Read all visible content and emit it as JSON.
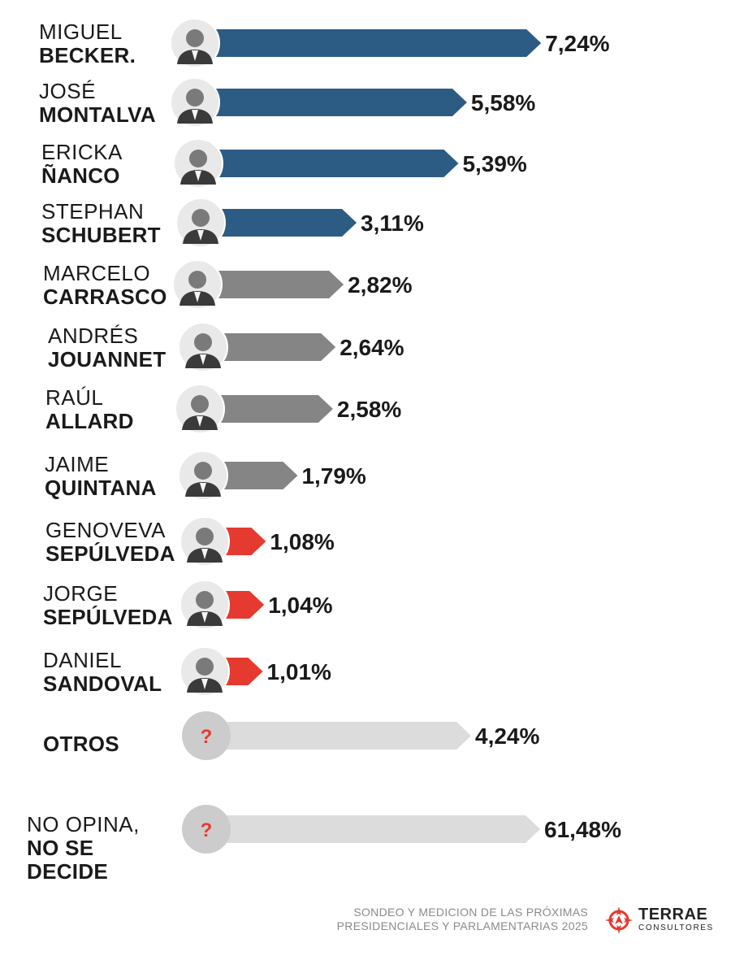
{
  "chart_data": {
    "type": "bar",
    "orientation": "horizontal",
    "value_suffix": "%",
    "categories": [
      {
        "first": "MIGUEL",
        "last": [
          "BECKER."
        ],
        "value_label": "7,24%",
        "value": 7.24,
        "group": "blue",
        "avatar": "person-photo"
      },
      {
        "first": "JOSÉ",
        "last": [
          "MONTALVA"
        ],
        "value_label": "5,58%",
        "value": 5.58,
        "group": "blue",
        "avatar": "person-photo"
      },
      {
        "first": "ERICKA",
        "last": [
          "ÑANCO"
        ],
        "value_label": "5,39%",
        "value": 5.39,
        "group": "blue",
        "avatar": "person-photo"
      },
      {
        "first": "STEPHAN",
        "last": [
          "SCHUBERT"
        ],
        "value_label": "3,11%",
        "value": 3.11,
        "group": "blue",
        "avatar": "person-photo"
      },
      {
        "first": "MARCELO",
        "last": [
          "CARRASCO"
        ],
        "value_label": "2,82%",
        "value": 2.82,
        "group": "gray",
        "avatar": "person-photo"
      },
      {
        "first": "ANDRÉS",
        "last": [
          "JOUANNET"
        ],
        "value_label": "2,64%",
        "value": 2.64,
        "group": "gray",
        "avatar": "person-photo"
      },
      {
        "first": "RAÚL",
        "last": [
          "ALLARD"
        ],
        "value_label": "2,58%",
        "value": 2.58,
        "group": "gray",
        "avatar": "person-photo"
      },
      {
        "first": "JAIME",
        "last": [
          "QUINTANA"
        ],
        "value_label": "1,79%",
        "value": 1.79,
        "group": "gray",
        "avatar": "person-photo"
      },
      {
        "first": "GENOVEVA",
        "last": [
          "SEPÚLVEDA"
        ],
        "value_label": "1,08%",
        "value": 1.08,
        "group": "red",
        "avatar": "person-photo"
      },
      {
        "first": "JORGE",
        "last": [
          "SEPÚLVEDA"
        ],
        "value_label": "1,04%",
        "value": 1.04,
        "group": "red",
        "avatar": "person-photo"
      },
      {
        "first": "DANIEL",
        "last": [
          "SANDOVAL"
        ],
        "value_label": "1,01%",
        "value": 1.01,
        "group": "red",
        "avatar": "person-photo"
      },
      {
        "first": "",
        "last": [
          "OTROS"
        ],
        "value_label": "4,24%",
        "value": 4.24,
        "group": "light",
        "avatar": "question-mark"
      },
      {
        "first": "NO OPINA,",
        "last": [
          "NO SE",
          "DECIDE"
        ],
        "value_label": "61,48%",
        "value": 61.48,
        "group": "light",
        "avatar": "question-mark"
      }
    ],
    "colors": {
      "blue": "#2c5c83",
      "gray": "#858585",
      "red": "#e53a2f",
      "light": "#dcdcdc",
      "avatar_bg": "#cccccc",
      "question_mark": "#e53a2f"
    },
    "question_glyph": "?",
    "title": "",
    "xlabel": "",
    "ylabel": ""
  },
  "footer": {
    "line1": "SONDEO Y MEDICION DE LAS PRÓXIMAS",
    "line2": "PRESIDENCIALES Y PARLAMENTARIAS 2025"
  },
  "brand": {
    "name": "TERRAE",
    "sub": "CONSULTORES",
    "accent": "#e53a2f"
  }
}
